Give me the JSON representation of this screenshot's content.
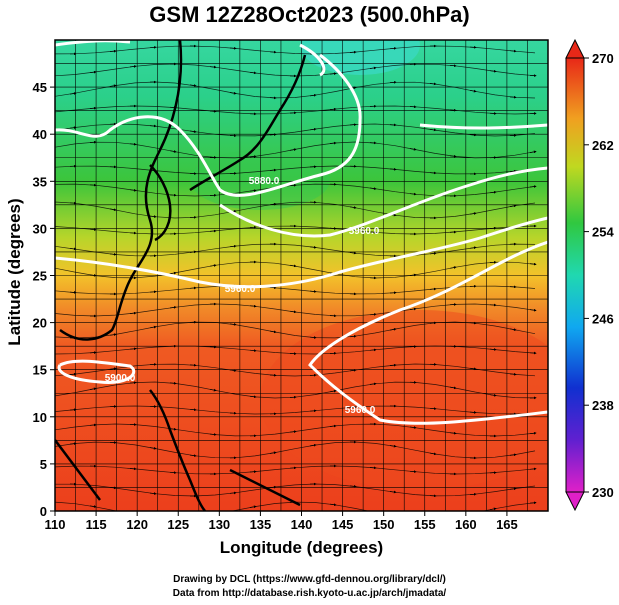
{
  "chart_data": {
    "type": "heatmap",
    "title": "GSM 12Z28Oct2023 (500.0hPa)",
    "xlabel": "Longitude (degrees)",
    "ylabel": "Latitude  (degrees)",
    "xlim": [
      110,
      170
    ],
    "ylim": [
      0,
      50
    ],
    "x_ticks": [
      "110",
      "115",
      "120",
      "125",
      "130",
      "135",
      "140",
      "145",
      "150",
      "155",
      "160",
      "165"
    ],
    "y_ticks": [
      "0",
      "5",
      "10",
      "15",
      "20",
      "25",
      "30",
      "35",
      "40",
      "45"
    ],
    "colorbar": {
      "labels": [
        "270",
        "262",
        "254",
        "246",
        "238",
        "230"
      ],
      "range": [
        230,
        270
      ]
    },
    "contour_labels": [
      "5880.0",
      "5960.0",
      "5900.0",
      "5960.0",
      "5960.0"
    ]
  },
  "credits": {
    "line1": "Drawing by DCL (https://www.gfd-dennou.org/library/dcl/)",
    "line2": "Data from http://database.rish.kyoto-u.ac.jp/arch/jmadata/"
  }
}
